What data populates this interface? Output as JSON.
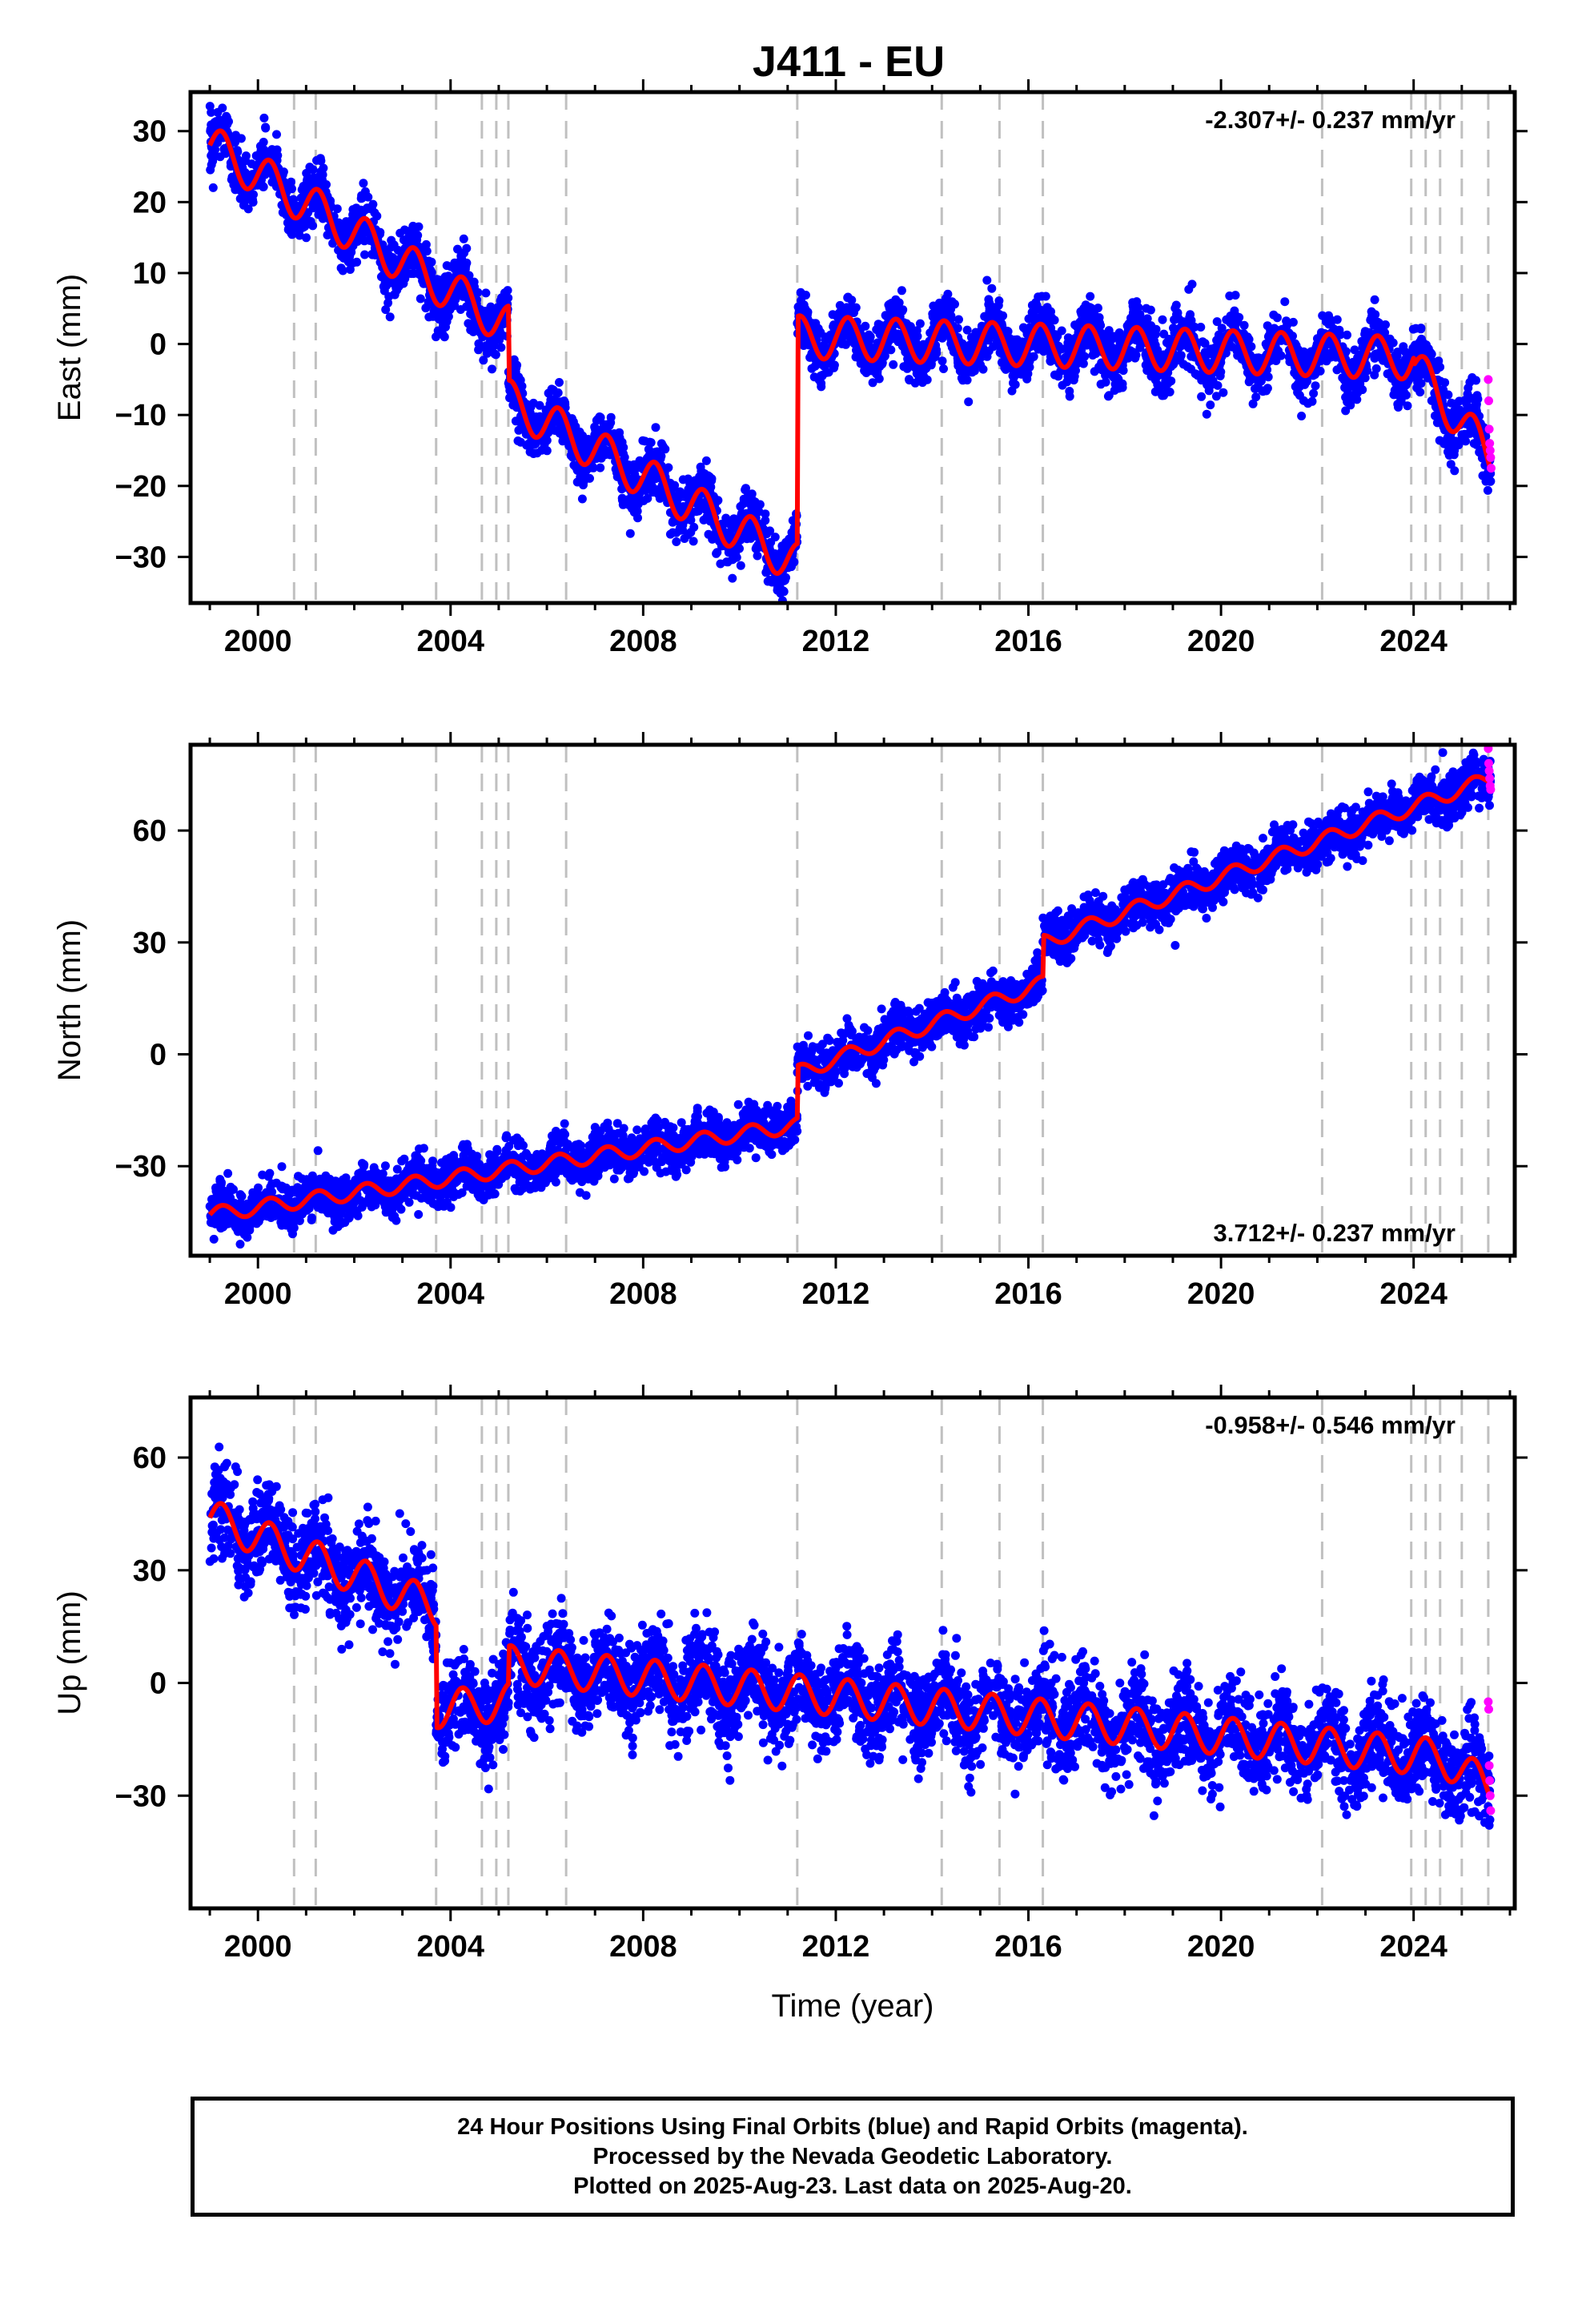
{
  "title": "J411 - EU",
  "colors": {
    "final_orbits": "#0000ff",
    "rapid_orbits": "#ff00ff",
    "model": "#ff0000",
    "offset_lines": "#c0c0c0"
  },
  "footer": {
    "line1": "24 Hour Positions Using Final Orbits (blue) and Rapid Orbits (magenta).",
    "line2": "Processed by the Nevada Geodetic Laboratory.",
    "line3": "Plotted on 2025-Aug-23. Last data on 2025-Aug-20."
  },
  "chart_data": [
    {
      "type": "scatter",
      "panel": "east",
      "title": "J411 - EU",
      "xlabel": "",
      "ylabel": "East (mm)",
      "rate_label": "-2.307+/- 0.237 mm/yr",
      "rate_position": "top-right",
      "xlim": [
        1998.6,
        2026.1
      ],
      "ylim": [
        -36.5,
        35.5
      ],
      "xticks": [
        2000,
        2004,
        2008,
        2012,
        2016,
        2020,
        2024
      ],
      "xtick_labels": [
        "2000",
        "2004",
        "2008",
        "2012",
        "2016",
        "2020",
        "2024"
      ],
      "yticks": [
        -30,
        -20,
        -10,
        0,
        10,
        20,
        30
      ],
      "ytick_labels": [
        "−30",
        "−20",
        "−10",
        "0",
        "10",
        "20",
        "30"
      ],
      "offset_lines": [
        2000.75,
        2001.2,
        2003.7,
        2004.65,
        2004.95,
        2005.2,
        2006.4,
        2011.2,
        2014.2,
        2015.4,
        2016.3,
        2022.1,
        2023.95,
        2024.25,
        2024.55,
        2025.0,
        2025.55
      ],
      "series": [
        {
          "name": "Final Orbits (blue)",
          "trend_segments": [
            {
              "start": 1999.0,
              "end": 2005.2,
              "y_start": 28.0,
              "y_end": 2.5
            },
            {
              "start": 2005.2,
              "end": 2011.2,
              "y_start": -8.0,
              "y_end": -31.0
            },
            {
              "start": 2011.2,
              "end": 2024.0,
              "y_start": 1.0,
              "y_end": -2.0
            },
            {
              "start": 2024.0,
              "end": 2025.6,
              "y_start": -3.0,
              "y_end": -16.0
            }
          ],
          "seasonal_amplitude": 3.0,
          "scatter": 2.0
        },
        {
          "name": "Rapid Orbits (magenta)",
          "x": [
            2025.55,
            2025.56,
            2025.57,
            2025.58,
            2025.59,
            2025.6,
            2025.61
          ],
          "y": [
            -5.0,
            -8.0,
            -12.0,
            -14.0,
            -15.0,
            -16.0,
            -17.5
          ]
        }
      ]
    },
    {
      "type": "scatter",
      "panel": "north",
      "xlabel": "",
      "ylabel": "North (mm)",
      "rate_label": "3.712+/- 0.237 mm/yr",
      "rate_position": "bottom-right",
      "xlim": [
        1998.6,
        2026.1
      ],
      "ylim": [
        -54,
        83
      ],
      "xticks": [
        2000,
        2004,
        2008,
        2012,
        2016,
        2020,
        2024
      ],
      "xtick_labels": [
        "2000",
        "2004",
        "2008",
        "2012",
        "2016",
        "2020",
        "2024"
      ],
      "yticks": [
        -30,
        0,
        30,
        60
      ],
      "ytick_labels": [
        "−30",
        "0",
        "30",
        "60"
      ],
      "offset_lines": [
        2000.75,
        2001.2,
        2003.7,
        2004.65,
        2004.95,
        2005.2,
        2006.4,
        2011.2,
        2014.2,
        2015.4,
        2016.3,
        2022.1,
        2023.95,
        2024.25,
        2024.55,
        2025.0,
        2025.55
      ],
      "series": [
        {
          "name": "Final Orbits (blue)",
          "trend_segments": [
            {
              "start": 1999.0,
              "end": 2011.2,
              "y_start": -43.0,
              "y_end": -19.0
            },
            {
              "start": 2011.2,
              "end": 2016.3,
              "y_start": -5.0,
              "y_end": 19.0
            },
            {
              "start": 2016.3,
              "end": 2025.6,
              "y_start": 30.0,
              "y_end": 74.0
            }
          ],
          "seasonal_amplitude": 2.0,
          "scatter": 3.0
        },
        {
          "name": "Rapid Orbits (magenta)",
          "x": [
            2025.55,
            2025.56,
            2025.57,
            2025.58,
            2025.59,
            2025.6
          ],
          "y": [
            82.0,
            78.0,
            76.0,
            74.0,
            72.0,
            71.0
          ]
        }
      ]
    },
    {
      "type": "scatter",
      "panel": "up",
      "xlabel": "Time (year)",
      "ylabel": "Up (mm)",
      "rate_label": "-0.958+/- 0.546 mm/yr",
      "rate_position": "top-right",
      "xlim": [
        1998.6,
        2026.1
      ],
      "ylim": [
        -60,
        76
      ],
      "xticks": [
        2000,
        2004,
        2008,
        2012,
        2016,
        2020,
        2024
      ],
      "xtick_labels": [
        "2000",
        "2004",
        "2008",
        "2012",
        "2016",
        "2020",
        "2024"
      ],
      "yticks": [
        -30,
        0,
        30,
        60
      ],
      "ytick_labels": [
        "−30",
        "0",
        "30",
        "60"
      ],
      "offset_lines": [
        2000.75,
        2001.2,
        2003.7,
        2004.65,
        2004.95,
        2005.2,
        2006.4,
        2011.2,
        2014.2,
        2015.4,
        2016.3,
        2022.1,
        2023.95,
        2024.25,
        2024.55,
        2025.0,
        2025.55
      ],
      "series": [
        {
          "name": "Final Orbits (blue)",
          "trend_segments": [
            {
              "start": 1999.0,
              "end": 2003.7,
              "y_start": 44.0,
              "y_end": 20.0
            },
            {
              "start": 2003.7,
              "end": 2005.2,
              "y_start": -7.0,
              "y_end": -5.0
            },
            {
              "start": 2005.2,
              "end": 2024.6,
              "y_start": 5.0,
              "y_end": -20.0
            },
            {
              "start": 2024.6,
              "end": 2025.6,
              "y_start": -20.0,
              "y_end": -28.0
            }
          ],
          "seasonal_amplitude": 5.0,
          "scatter": 6.0
        },
        {
          "name": "Rapid Orbits (magenta)",
          "x": [
            2025.55,
            2025.56,
            2025.57,
            2025.58,
            2025.59,
            2025.6
          ],
          "y": [
            -5.0,
            -7.0,
            -22.0,
            -26.0,
            -30.0,
            -34.0
          ]
        }
      ]
    }
  ]
}
